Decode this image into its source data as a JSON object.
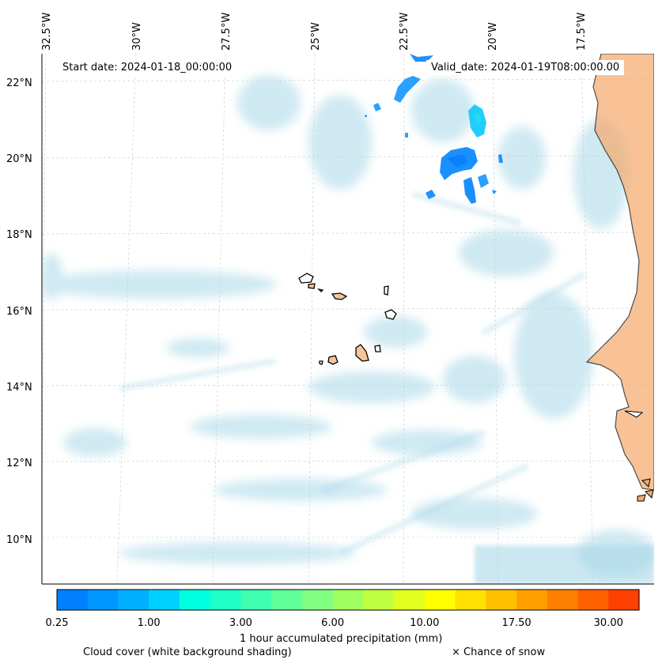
{
  "map": {
    "start_date_label": "Start date: 2024-01-18_00:00:00",
    "valid_date_label": "Valid_date: 2024-01-19T08:00:00.00",
    "longitude_labels": [
      "32.5°W",
      "30°W",
      "27.5°W",
      "25°W",
      "22.5°W",
      "20°W",
      "17.5°W"
    ],
    "latitude_labels": [
      "22°N",
      "20°N",
      "18°N",
      "16°N",
      "14°N",
      "12°N",
      "10°N"
    ],
    "cloud_color": "#a8d8e8",
    "land_color": "#f5a86a"
  },
  "colorbar": {
    "colors": [
      "#0080ff",
      "#0096ff",
      "#00b0ff",
      "#00d0ff",
      "#00ffe0",
      "#20ffc8",
      "#40ffb0",
      "#60ff98",
      "#80ff80",
      "#a0ff60",
      "#c0ff40",
      "#e0ff20",
      "#ffff00",
      "#ffe000",
      "#ffc000",
      "#ffa000",
      "#ff8000",
      "#ff6000",
      "#ff4000"
    ],
    "tick_labels": [
      "0.25",
      "1.00",
      "3.00",
      "6.00",
      "10.00",
      "17.50",
      "30.00"
    ],
    "title": "1 hour accumulated precipitation (mm)"
  },
  "legend": {
    "cloud_cover_text": "Cloud cover (white background shading)",
    "snow_text": "× Chance of snow"
  }
}
